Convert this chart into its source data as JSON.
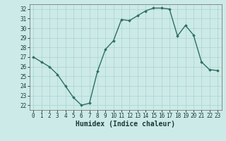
{
  "x": [
    0,
    1,
    2,
    3,
    4,
    5,
    6,
    7,
    8,
    9,
    10,
    11,
    12,
    13,
    14,
    15,
    16,
    17,
    18,
    19,
    20,
    21,
    22,
    23
  ],
  "y": [
    27,
    26.5,
    26,
    25.2,
    24,
    22.8,
    22,
    22.2,
    25.5,
    27.8,
    28.7,
    30.9,
    30.8,
    31.3,
    31.8,
    32.1,
    32.1,
    32.0,
    29.2,
    30.3,
    29.3,
    26.5,
    25.7,
    25.6
  ],
  "line_color": "#2d6e63",
  "marker": "D",
  "marker_size": 1.8,
  "bg_color": "#cceae7",
  "grid_color": "#aad4d0",
  "xlabel": "Humidex (Indice chaleur)",
  "ylim": [
    21.5,
    32.5
  ],
  "xlim": [
    -0.5,
    23.5
  ],
  "yticks": [
    22,
    23,
    24,
    25,
    26,
    27,
    28,
    29,
    30,
    31,
    32
  ],
  "xticks": [
    0,
    1,
    2,
    3,
    4,
    5,
    6,
    7,
    8,
    9,
    10,
    11,
    12,
    13,
    14,
    15,
    16,
    17,
    18,
    19,
    20,
    21,
    22,
    23
  ],
  "tick_label_fontsize": 5.5,
  "xlabel_fontsize": 7.0,
  "line_width": 1.0
}
